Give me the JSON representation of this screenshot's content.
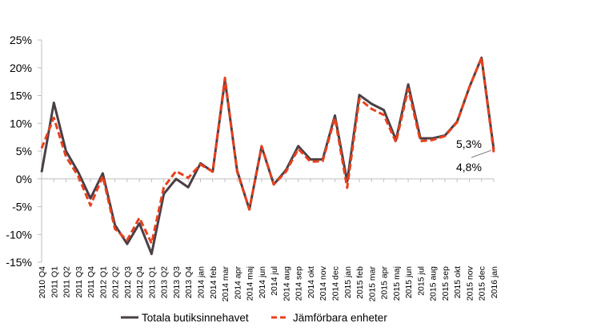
{
  "colors": {
    "total": "#4a3f46",
    "comparable": "#e8401c",
    "axis": "#bfbfbf"
  },
  "chart_data": {
    "type": "line",
    "categories": [
      "2010 Q4",
      "2011 Q1",
      "2011 Q2",
      "2011 Q3",
      "2011 Q4",
      "2012 Q1",
      "2012 Q2",
      "2012 Q3",
      "2012 Q4",
      "2013 Q1",
      "2013 Q2",
      "2013 Q3",
      "2013 Q4",
      "2014 jan",
      "2014 feb",
      "2014 mar",
      "2014 apr",
      "2014 maj",
      "2014 jun",
      "2014 jul",
      "2014 aug",
      "2014 sep",
      "2014 okt",
      "2014 nov",
      "2014 dec",
      "2015 jan",
      "2015 feb",
      "2015 mar",
      "2015 apr",
      "2015 maj",
      "2015 jun",
      "2015 jul",
      "2015 aug",
      "2015 sep",
      "2015 okt",
      "2015 nov",
      "2015 dec",
      "2016 jan"
    ],
    "series": [
      {
        "name": "Totala butiksinnehavet",
        "style": "solid",
        "values": [
          1.2,
          13.7,
          5.0,
          1.2,
          -3.5,
          1.0,
          -8.3,
          -11.7,
          -8.0,
          -13.5,
          -2.7,
          0.0,
          -1.5,
          2.8,
          1.3,
          17.8,
          1.5,
          -5.5,
          5.8,
          -1.0,
          1.6,
          5.9,
          3.5,
          3.5,
          11.4,
          -0.5,
          15.1,
          13.5,
          12.4,
          7.0,
          17.0,
          7.3,
          7.3,
          7.8,
          10.3,
          16.5,
          21.8,
          5.3
        ]
      },
      {
        "name": "Jämförbara enheter",
        "style": "dashed",
        "values": [
          5.5,
          11.0,
          4.0,
          0.5,
          -4.8,
          0.5,
          -9.0,
          -11.0,
          -7.0,
          -11.6,
          -1.5,
          1.4,
          0.2,
          2.6,
          1.3,
          18.2,
          1.3,
          -5.5,
          5.9,
          -1.0,
          1.3,
          5.4,
          3.1,
          3.2,
          11.0,
          -1.6,
          14.4,
          12.6,
          11.5,
          6.6,
          16.2,
          6.8,
          7.0,
          7.7,
          10.2,
          16.5,
          21.8,
          4.8
        ]
      }
    ],
    "ylim": [
      -15,
      25
    ],
    "yticks": [
      "-15%",
      "-10%",
      "-5%",
      "0%",
      "5%",
      "10%",
      "15%",
      "20%",
      "25%"
    ],
    "annotations": [
      "5,3%",
      "4,8%"
    ],
    "legend_position": "bottom",
    "grid": false
  }
}
